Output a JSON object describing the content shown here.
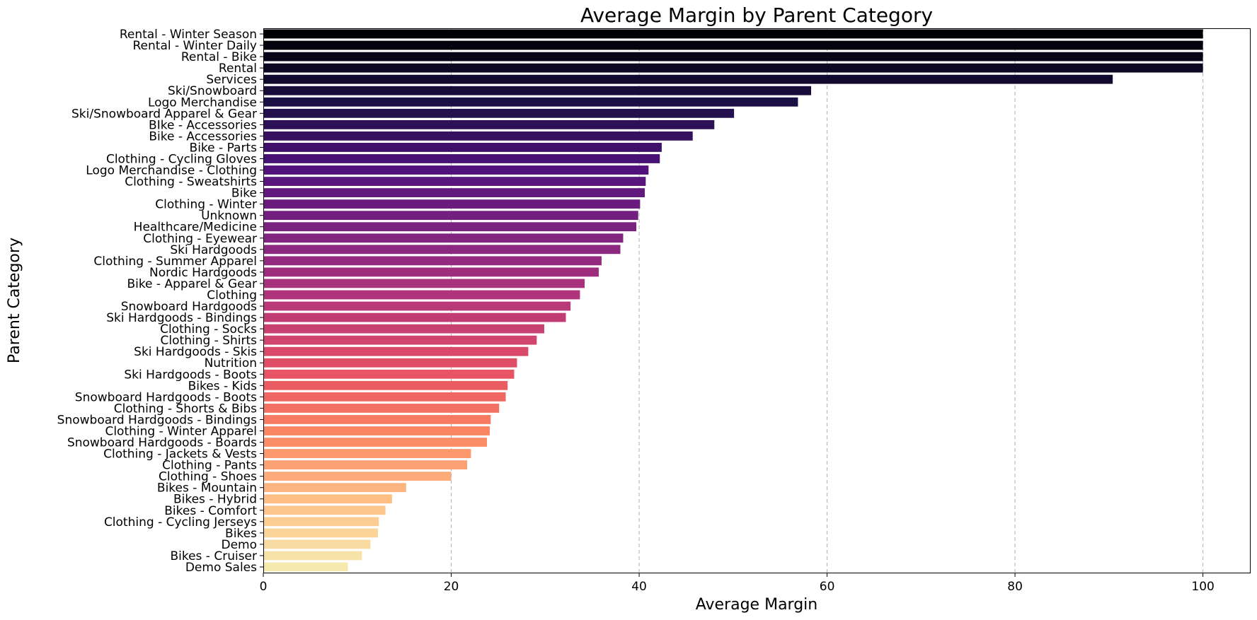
{
  "chart_data": {
    "type": "bar",
    "orientation": "horizontal",
    "title": "Average Margin by Parent Category",
    "xlabel": "Average Margin",
    "ylabel": "Parent Category",
    "xlim": [
      0,
      105
    ],
    "xticks": [
      0,
      20,
      40,
      60,
      80,
      100
    ],
    "grid": "x-dashed",
    "colormap": "magma",
    "color_start": "#000004",
    "color_end": "#f5e9ae",
    "categories": [
      "Rental - Winter Season",
      "Rental - Winter Daily",
      "Rental - Bike",
      "Rental",
      "Services",
      "Ski/Snowboard",
      "Logo Merchandise",
      "Ski/Snowboard Apparel & Gear",
      "BIke - Accessories",
      "Bike - Accessories",
      "Bike - Parts",
      "Clothing - Cycling Gloves",
      "Logo Merchandise - Clothing",
      "Clothing - Sweatshirts",
      "Bike",
      "Clothing - Winter",
      "Unknown",
      "Healthcare/Medicine",
      "Clothing - Eyewear",
      "Ski Hardgoods",
      "Clothing - Summer Apparel",
      "Nordic Hardgoods",
      "Bike - Apparel & Gear",
      "Clothing",
      "Snowboard Hardgoods",
      "Ski Hardgoods - Bindings",
      "Clothing - Socks",
      "Clothing - Shirts",
      "Ski Hardgoods - Skis",
      "Nutrition",
      "Ski Hardgoods - Boots",
      "Bikes - Kids",
      "Snowboard Hardgoods - Boots",
      "Clothing - Shorts & Bibs",
      "Snowboard Hardgoods - Bindings",
      "Clothing - Winter Apparel",
      "Snowboard Hardgoods - Boards",
      "Clothing - Jackets & Vests",
      "Clothing - Pants",
      "Clothing - Shoes",
      "Bikes - Mountain",
      "Bikes - Hybrid",
      "Bikes - Comfort",
      "Clothing - Cycling Jerseys",
      "Bikes",
      "Demo",
      "Bikes - Cruiser",
      "Demo Sales"
    ],
    "values": [
      100,
      100,
      100,
      100,
      90.4,
      58.3,
      56.9,
      50.1,
      48.0,
      45.7,
      42.4,
      42.2,
      41.0,
      40.7,
      40.6,
      40.1,
      39.9,
      39.7,
      38.3,
      38.0,
      36.0,
      35.7,
      34.2,
      33.7,
      32.7,
      32.2,
      29.9,
      29.1,
      28.2,
      27.0,
      26.7,
      26.0,
      25.8,
      25.1,
      24.2,
      24.1,
      23.8,
      22.1,
      21.7,
      20.0,
      15.2,
      13.7,
      13.0,
      12.3,
      12.2,
      11.4,
      10.5,
      9.0
    ]
  }
}
